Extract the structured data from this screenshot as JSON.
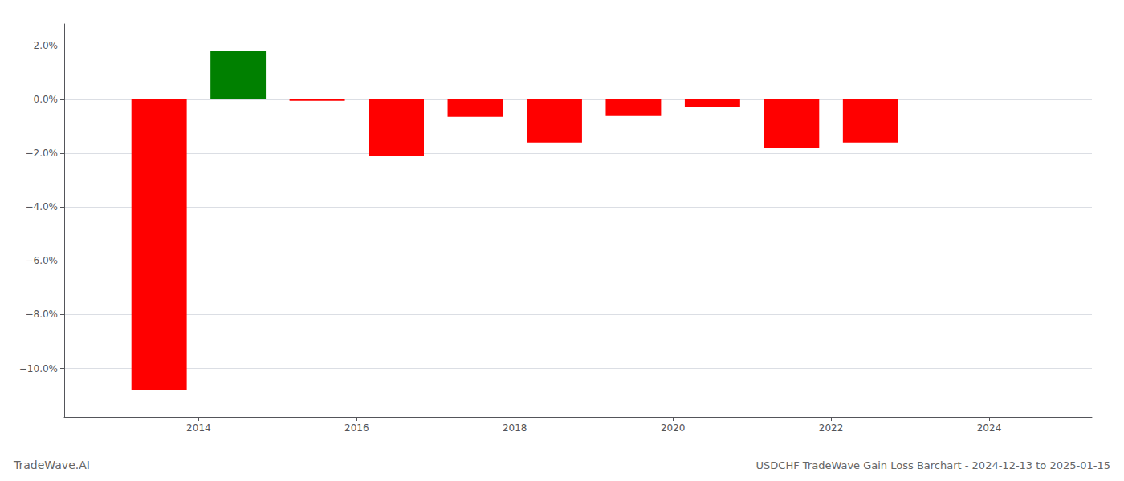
{
  "chart_data": {
    "type": "bar",
    "title": "USDCHF TradeWave Gain Loss Barchart - 2024-12-13 to 2025-01-15",
    "annotations": [
      "TradeWave.AI"
    ],
    "x": [
      2013.5,
      2014.5,
      2015.5,
      2016.5,
      2017.5,
      2018.5,
      2019.5,
      2020.5,
      2021.5,
      2022.5,
      2023.5
    ],
    "values": [
      -10.8,
      1.8,
      -0.05,
      -2.1,
      -0.65,
      -1.6,
      -0.62,
      -0.3,
      -1.8,
      -1.6,
      0.0
    ],
    "colors": [
      "#ff0000",
      "#008000",
      "#ff0000",
      "#ff0000",
      "#ff0000",
      "#ff0000",
      "#ff0000",
      "#ff0000",
      "#ff0000",
      "#ff0000",
      "#ff0000"
    ],
    "xlim": [
      2012.3,
      2025.3
    ],
    "xticks": [
      2014,
      2016,
      2018,
      2020,
      2022,
      2024
    ],
    "ylim": [
      -11.8,
      2.8
    ],
    "yticks": [
      {
        "value": 2.0,
        "label": "2.0%"
      },
      {
        "value": 0.0,
        "label": "0.0%"
      },
      {
        "value": -2.0,
        "label": "−2.0%"
      },
      {
        "value": -4.0,
        "label": "−4.0%"
      },
      {
        "value": -6.0,
        "label": "−6.0%"
      },
      {
        "value": -8.0,
        "label": "−8.0%"
      },
      {
        "value": -10.0,
        "label": "−10.0%"
      }
    ],
    "grid": true
  }
}
